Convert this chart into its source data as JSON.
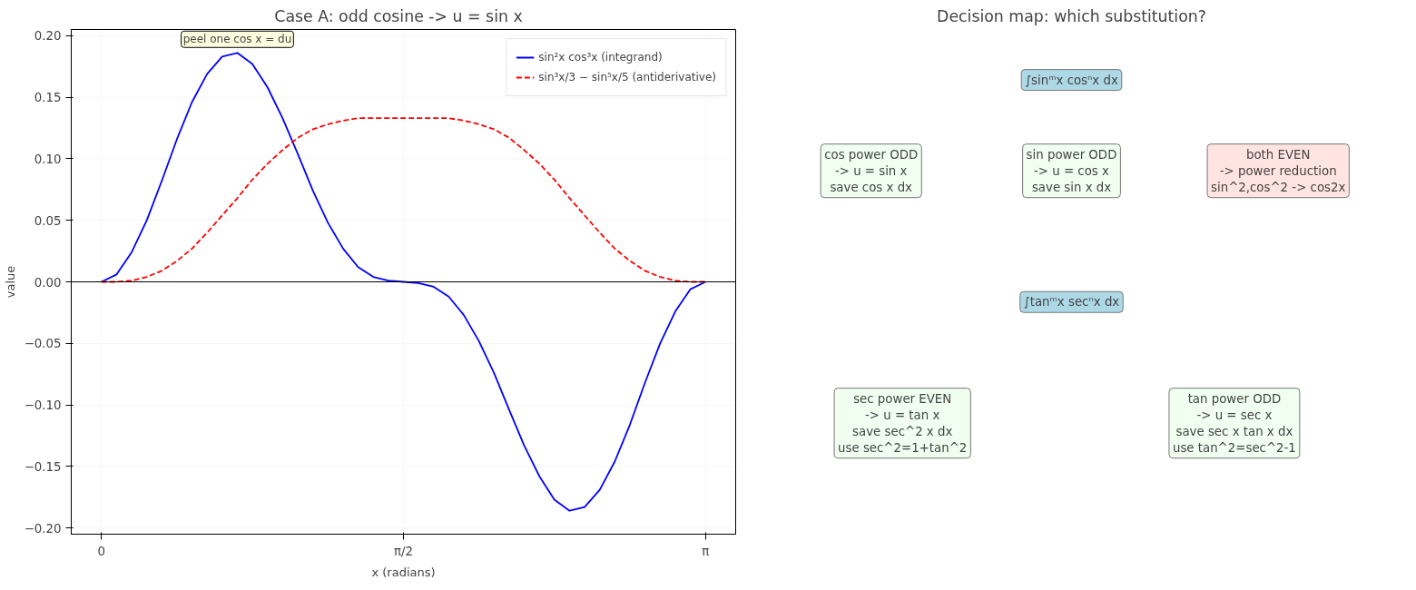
{
  "chart_data": [
    {
      "type": "line",
      "title": "Case A: odd cosine  ->  u = sin x",
      "xlabel": "x (radians)",
      "ylabel": "value",
      "x": [
        0,
        0.079,
        0.157,
        0.236,
        0.314,
        0.393,
        0.471,
        0.55,
        0.628,
        0.707,
        0.785,
        0.864,
        0.942,
        1.021,
        1.1,
        1.178,
        1.257,
        1.335,
        1.414,
        1.492,
        1.571,
        1.649,
        1.728,
        1.806,
        1.885,
        1.963,
        2.042,
        2.121,
        2.199,
        2.278,
        2.356,
        2.435,
        2.513,
        2.592,
        2.67,
        2.749,
        2.827,
        2.906,
        2.985,
        3.063,
        3.142
      ],
      "series": [
        {
          "name": "sin²x cos³x (integrand)",
          "color": "#0000ff",
          "line_style": "solid",
          "values": [
            0,
            0.006,
            0.024,
            0.05,
            0.082,
            0.116,
            0.146,
            0.169,
            0.183,
            0.186,
            0.177,
            0.158,
            0.133,
            0.104,
            0.074,
            0.048,
            0.027,
            0.012,
            0.004,
            0.001,
            0,
            -0.001,
            -0.004,
            -0.012,
            -0.027,
            -0.048,
            -0.074,
            -0.104,
            -0.133,
            -0.158,
            -0.177,
            -0.186,
            -0.183,
            -0.169,
            -0.146,
            -0.116,
            -0.082,
            -0.05,
            -0.024,
            -0.006,
            0
          ]
        },
        {
          "name": "sin³x/3 − sin⁵x/5 (antiderivative)",
          "color": "#ff0000",
          "line_style": "dashed",
          "values": [
            0,
            0,
            0.001,
            0.004,
            0.009,
            0.017,
            0.027,
            0.04,
            0.054,
            0.068,
            0.083,
            0.096,
            0.107,
            0.117,
            0.124,
            0.128,
            0.131,
            0.133,
            0.133,
            0.133,
            0.133,
            0.133,
            0.133,
            0.133,
            0.131,
            0.128,
            0.124,
            0.117,
            0.107,
            0.096,
            0.083,
            0.068,
            0.054,
            0.04,
            0.027,
            0.017,
            0.009,
            0.004,
            0.001,
            0,
            0
          ]
        }
      ],
      "xlim": [
        -0.157,
        3.299
      ],
      "ylim": [
        -0.205,
        0.205
      ],
      "xticks": [
        {
          "value": 0,
          "label": "0"
        },
        {
          "value": 1.571,
          "label": "π/2"
        },
        {
          "value": 3.142,
          "label": "π"
        }
      ],
      "yticks": [
        {
          "value": -0.2,
          "label": "−0.20"
        },
        {
          "value": -0.15,
          "label": "−0.15"
        },
        {
          "value": -0.1,
          "label": "−0.10"
        },
        {
          "value": -0.05,
          "label": "−0.05"
        },
        {
          "value": 0,
          "label": "0.00"
        },
        {
          "value": 0.05,
          "label": "0.05"
        },
        {
          "value": 0.1,
          "label": "0.10"
        },
        {
          "value": 0.15,
          "label": "0.15"
        },
        {
          "value": 0.2,
          "label": "0.20"
        }
      ],
      "ref_lines": [
        {
          "axis": "y",
          "value": 0,
          "color": "#000000"
        }
      ],
      "annotations": [
        {
          "text": "peel one cos x = du",
          "x": 0.707,
          "y": 0.186
        }
      ],
      "grid": true,
      "legend": "top right",
      "marker": "none"
    },
    {
      "type": "other",
      "title": "Decision map: which substitution?",
      "annotations": [
        "∫sinᵐx cosⁿx dx",
        "cos power ODD\n-> u = sin x\nsave cos x dx",
        "sin power ODD\n-> u = cos x\nsave sin x dx",
        "both EVEN\n-> power reduction\nsin^2,cos^2 -> cos2x",
        "∫tanᵐx secⁿx dx",
        "sec power EVEN\n-> u = tan x\nsave sec^2 x dx\nuse sec^2=1+tan^2",
        "tan power ODD\n-> u = sec x\nsave sec x tan x dx\nuse tan^2=sec^2-1"
      ]
    }
  ]
}
